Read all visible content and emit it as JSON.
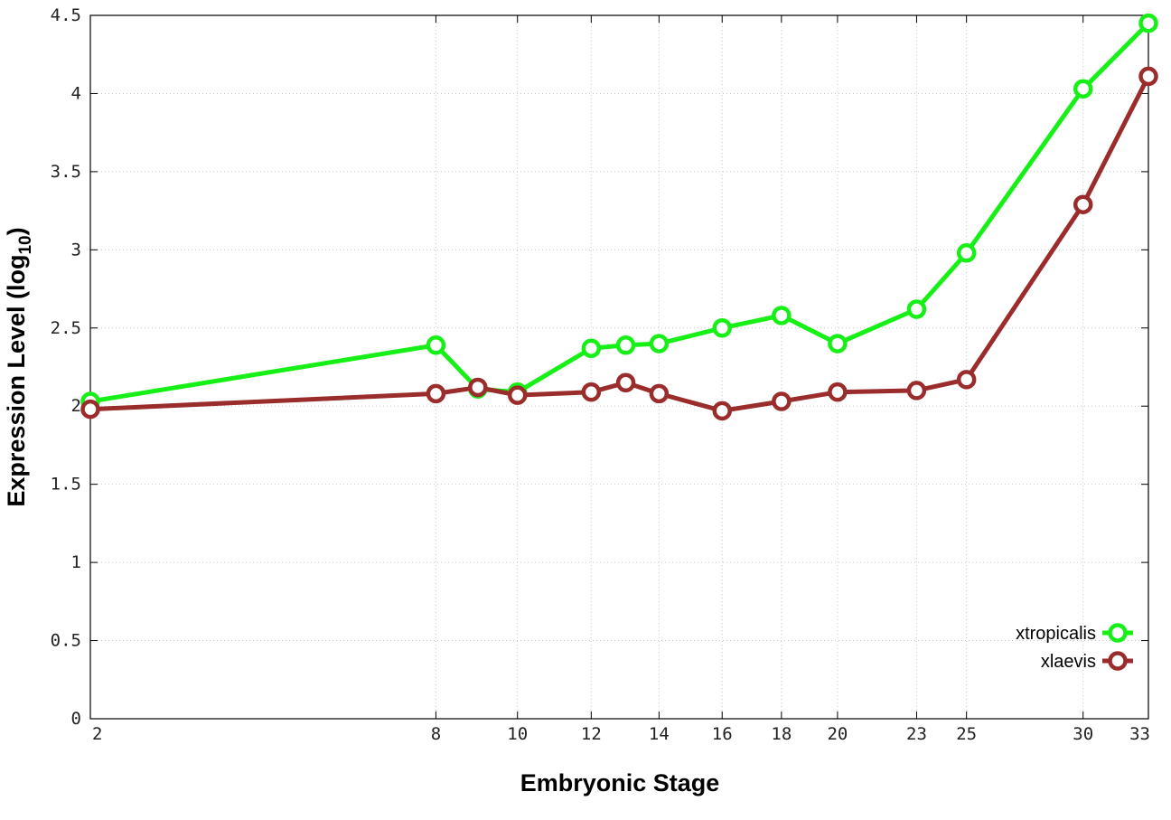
{
  "chart_data": {
    "type": "line",
    "title": "",
    "xlabel": "Embryonic Stage",
    "ylabel_main": "Expression Level (log",
    "ylabel_sub": "10",
    "ylabel_close": ")",
    "x_scale": "sqrt",
    "xlim": [
      2,
      33
    ],
    "ylim": [
      0,
      4.5
    ],
    "x_ticks": [
      2,
      8,
      10,
      12,
      14,
      16,
      18,
      20,
      23,
      25,
      30,
      33
    ],
    "x_tick_labels": [
      "2",
      "8",
      "10",
      "12",
      "14",
      "16",
      "18",
      "20",
      "23",
      "25",
      "30",
      "33"
    ],
    "y_ticks": [
      0,
      0.5,
      1,
      1.5,
      2,
      2.5,
      3,
      3.5,
      4,
      4.5
    ],
    "y_tick_labels": [
      "0",
      "0.5",
      "1",
      "1.5",
      "2",
      "2.5",
      "3",
      "3.5",
      "4",
      "4.5"
    ],
    "grid": true,
    "legend_position": "bottom-right",
    "x": [
      2,
      8,
      9,
      10,
      12,
      13,
      14,
      16,
      18,
      20,
      23,
      25,
      30,
      33
    ],
    "series": [
      {
        "name": "xtropicalis",
        "color": "#16f016",
        "values": [
          2.03,
          2.39,
          2.11,
          2.09,
          2.37,
          2.39,
          2.4,
          2.5,
          2.58,
          2.4,
          2.62,
          2.98,
          4.03,
          4.45
        ]
      },
      {
        "name": "xlaevis",
        "color": "#9b2c2c",
        "values": [
          1.98,
          2.08,
          2.12,
          2.07,
          2.09,
          2.15,
          2.08,
          1.97,
          2.03,
          2.09,
          2.1,
          2.17,
          3.29,
          4.11
        ]
      }
    ]
  }
}
